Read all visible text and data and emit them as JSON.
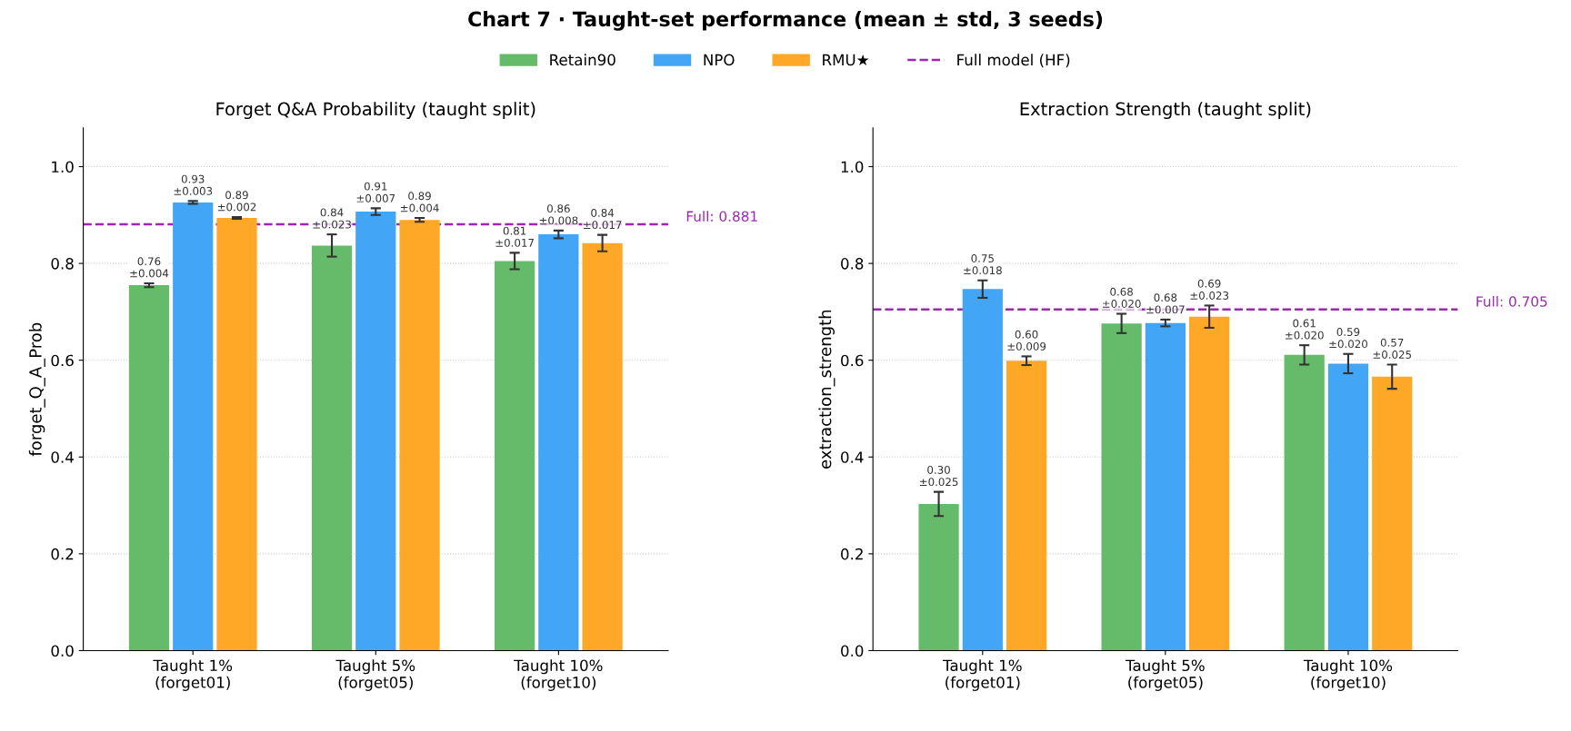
{
  "chart_data": [
    {
      "type": "bar",
      "title": "Forget Q&A Probability (taught split)",
      "ylabel": "forget_Q_A_Prob",
      "categories": [
        "Taught 1%\n(forget01)",
        "Taught 5%\n(forget05)",
        "Taught 10%\n(forget10)"
      ],
      "series": [
        {
          "name": "Retain90",
          "color": "#66bb6a",
          "values": [
            0.755,
            0.837,
            0.805
          ],
          "errors": [
            0.004,
            0.023,
            0.017
          ],
          "value_labels": [
            "0.76\n±0.004",
            "0.84\n±0.023",
            "0.81\n±0.017"
          ]
        },
        {
          "name": "NPO",
          "color": "#42a5f5",
          "values": [
            0.926,
            0.907,
            0.86
          ],
          "errors": [
            0.003,
            0.007,
            0.008
          ],
          "value_labels": [
            "0.93\n±0.003",
            "0.91\n±0.007",
            "0.86\n±0.008"
          ]
        },
        {
          "name": "RMU★",
          "color": "#ffa726",
          "values": [
            0.894,
            0.89,
            0.842
          ],
          "errors": [
            0.002,
            0.004,
            0.017
          ],
          "value_labels": [
            "0.89\n±0.002",
            "0.89\n±0.004",
            "0.84\n±0.017"
          ]
        }
      ],
      "ylim": [
        0,
        1.08
      ],
      "yticks": [
        {
          "value": 0,
          "label": "0.0"
        },
        {
          "value": 0.2,
          "label": "0.2"
        },
        {
          "value": 0.4,
          "label": "0.4"
        },
        {
          "value": 0.6,
          "label": "0.6"
        },
        {
          "value": 0.8,
          "label": "0.8"
        },
        {
          "value": 1,
          "label": "1.0"
        }
      ],
      "ref_lines": [
        {
          "axis": "y",
          "value": 0.881,
          "label": "Full: 0.881",
          "color": "#9c27b0",
          "line_style": "dashed"
        }
      ],
      "annotations": [
        "Chart 7 · Taught-set performance (mean ± std, 3 seeds)",
        "Full model (HF)"
      ],
      "grid": "y",
      "legend": "top"
    },
    {
      "type": "bar",
      "title": "Extraction Strength (taught split)",
      "ylabel": "extraction_strength",
      "categories": [
        "Taught 1%\n(forget01)",
        "Taught 5%\n(forget05)",
        "Taught 10%\n(forget10)"
      ],
      "series": [
        {
          "color": "#66bb6a",
          "values": [
            0.303,
            0.676,
            0.611
          ],
          "errors": [
            0.025,
            0.02,
            0.02
          ],
          "value_labels": [
            "0.30\n±0.025",
            "0.68\n±0.020",
            "0.61\n±0.020"
          ]
        },
        {
          "color": "#42a5f5",
          "values": [
            0.747,
            0.677,
            0.593
          ],
          "errors": [
            0.018,
            0.007,
            0.02
          ],
          "value_labels": [
            "0.75\n±0.018",
            "0.68\n±0.007",
            "0.59\n±0.020"
          ]
        },
        {
          "color": "#ffa726",
          "values": [
            0.599,
            0.69,
            0.566
          ],
          "errors": [
            0.009,
            0.023,
            0.025
          ],
          "value_labels": [
            "0.60\n±0.009",
            "0.69\n±0.023",
            "0.57\n±0.025"
          ]
        }
      ],
      "ylim": [
        0,
        1.08
      ],
      "yticks": [
        {
          "value": 0,
          "label": "0.0"
        },
        {
          "value": 0.2,
          "label": "0.2"
        },
        {
          "value": 0.4,
          "label": "0.4"
        },
        {
          "value": 0.6,
          "label": "0.6"
        },
        {
          "value": 0.8,
          "label": "0.8"
        },
        {
          "value": 1,
          "label": "1.0"
        }
      ],
      "ref_lines": [
        {
          "axis": "y",
          "value": 0.705,
          "label": "Full: 0.705",
          "color": "#9c27b0",
          "line_style": "dashed"
        }
      ],
      "grid": "y"
    }
  ]
}
